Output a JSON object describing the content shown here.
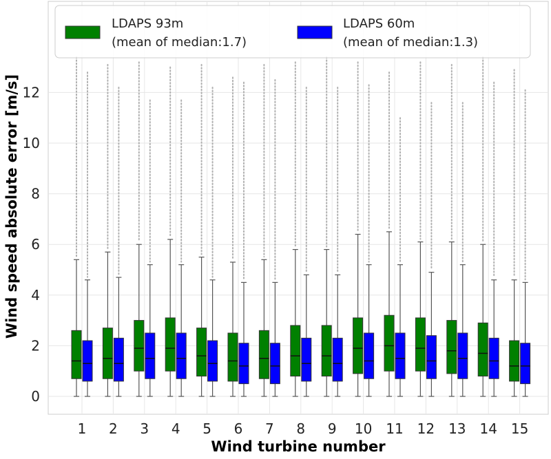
{
  "chart_data": {
    "type": "boxplot",
    "xlabel": "Wind turbine number",
    "ylabel": "Wind speed absolute error [m/s]",
    "categories": [
      "1",
      "2",
      "3",
      "4",
      "5",
      "6",
      "7",
      "8",
      "9",
      "10",
      "11",
      "12",
      "13",
      "14",
      "15"
    ],
    "ylim": [
      -0.3,
      15
    ],
    "yticks": [
      0,
      2,
      4,
      6,
      8,
      10,
      12
    ],
    "grid": true,
    "legend_placement": "top",
    "series": [
      {
        "name": "LDAPS 93m",
        "legend_note": "(mean of median:1.7)",
        "color": "#008000",
        "boxes": [
          {
            "q1": 0.7,
            "median": 1.4,
            "q3": 2.6,
            "whisker_low": 0,
            "whisker_high": 5.4,
            "outlier_max": 13.4
          },
          {
            "q1": 0.7,
            "median": 1.5,
            "q3": 2.7,
            "whisker_low": 0,
            "whisker_high": 5.7,
            "outlier_max": 13.1
          },
          {
            "q1": 1.0,
            "median": 1.9,
            "q3": 3.0,
            "whisker_low": 0,
            "whisker_high": 6.0,
            "outlier_max": 13.2
          },
          {
            "q1": 1.0,
            "median": 1.9,
            "q3": 3.1,
            "whisker_low": 0,
            "whisker_high": 6.2,
            "outlier_max": 13.0
          },
          {
            "q1": 0.8,
            "median": 1.6,
            "q3": 2.7,
            "whisker_low": 0,
            "whisker_high": 5.5,
            "outlier_max": 13.1
          },
          {
            "q1": 0.6,
            "median": 1.4,
            "q3": 2.5,
            "whisker_low": 0,
            "whisker_high": 5.3,
            "outlier_max": 12.6
          },
          {
            "q1": 0.7,
            "median": 1.5,
            "q3": 2.6,
            "whisker_low": 0,
            "whisker_high": 5.4,
            "outlier_max": 13.1
          },
          {
            "q1": 0.8,
            "median": 1.6,
            "q3": 2.8,
            "whisker_low": 0,
            "whisker_high": 5.8,
            "outlier_max": 13.2
          },
          {
            "q1": 0.8,
            "median": 1.6,
            "q3": 2.8,
            "whisker_low": 0,
            "whisker_high": 5.8,
            "outlier_max": 13.4
          },
          {
            "q1": 0.9,
            "median": 1.9,
            "q3": 3.1,
            "whisker_low": 0,
            "whisker_high": 6.4,
            "outlier_max": 13.2
          },
          {
            "q1": 1.0,
            "median": 2.0,
            "q3": 3.2,
            "whisker_low": 0,
            "whisker_high": 6.5,
            "outlier_max": 12.8
          },
          {
            "q1": 1.0,
            "median": 1.9,
            "q3": 3.1,
            "whisker_low": 0,
            "whisker_high": 6.1,
            "outlier_max": 13.2
          },
          {
            "q1": 0.9,
            "median": 1.8,
            "q3": 3.0,
            "whisker_low": 0,
            "whisker_high": 6.1,
            "outlier_max": 13.1
          },
          {
            "q1": 0.8,
            "median": 1.7,
            "q3": 2.9,
            "whisker_low": 0,
            "whisker_high": 6.0,
            "outlier_max": 13.4
          },
          {
            "q1": 0.6,
            "median": 1.2,
            "q3": 2.2,
            "whisker_low": 0,
            "whisker_high": 4.6,
            "outlier_max": 12.9
          }
        ]
      },
      {
        "name": "LDAPS 60m",
        "legend_note": "(mean of median:1.3)",
        "color": "#0000ff",
        "boxes": [
          {
            "q1": 0.6,
            "median": 1.3,
            "q3": 2.2,
            "whisker_low": 0,
            "whisker_high": 4.6,
            "outlier_max": 12.8
          },
          {
            "q1": 0.6,
            "median": 1.3,
            "q3": 2.3,
            "whisker_low": 0,
            "whisker_high": 4.7,
            "outlier_max": 12.2
          },
          {
            "q1": 0.7,
            "median": 1.5,
            "q3": 2.5,
            "whisker_low": 0,
            "whisker_high": 5.2,
            "outlier_max": 11.7
          },
          {
            "q1": 0.7,
            "median": 1.5,
            "q3": 2.5,
            "whisker_low": 0,
            "whisker_high": 5.2,
            "outlier_max": 11.7
          },
          {
            "q1": 0.6,
            "median": 1.3,
            "q3": 2.2,
            "whisker_low": 0,
            "whisker_high": 4.6,
            "outlier_max": 12.2
          },
          {
            "q1": 0.5,
            "median": 1.2,
            "q3": 2.1,
            "whisker_low": 0,
            "whisker_high": 4.5,
            "outlier_max": 12.4
          },
          {
            "q1": 0.5,
            "median": 1.2,
            "q3": 2.1,
            "whisker_low": 0,
            "whisker_high": 4.5,
            "outlier_max": 12.5
          },
          {
            "q1": 0.6,
            "median": 1.3,
            "q3": 2.3,
            "whisker_low": 0,
            "whisker_high": 4.8,
            "outlier_max": 12.2
          },
          {
            "q1": 0.6,
            "median": 1.3,
            "q3": 2.3,
            "whisker_low": 0,
            "whisker_high": 4.8,
            "outlier_max": 12.2
          },
          {
            "q1": 0.7,
            "median": 1.4,
            "q3": 2.5,
            "whisker_low": 0,
            "whisker_high": 5.2,
            "outlier_max": 12.3
          },
          {
            "q1": 0.7,
            "median": 1.5,
            "q3": 2.5,
            "whisker_low": 0,
            "whisker_high": 5.2,
            "outlier_max": 11.0
          },
          {
            "q1": 0.7,
            "median": 1.4,
            "q3": 2.4,
            "whisker_low": 0,
            "whisker_high": 4.9,
            "outlier_max": 11.6
          },
          {
            "q1": 0.7,
            "median": 1.5,
            "q3": 2.5,
            "whisker_low": 0,
            "whisker_high": 5.2,
            "outlier_max": 11.6
          },
          {
            "q1": 0.7,
            "median": 1.4,
            "q3": 2.3,
            "whisker_low": 0,
            "whisker_high": 4.6,
            "outlier_max": 12.4
          },
          {
            "q1": 0.5,
            "median": 1.2,
            "q3": 2.1,
            "whisker_low": 0,
            "whisker_high": 4.5,
            "outlier_max": 12.1
          }
        ]
      }
    ]
  }
}
